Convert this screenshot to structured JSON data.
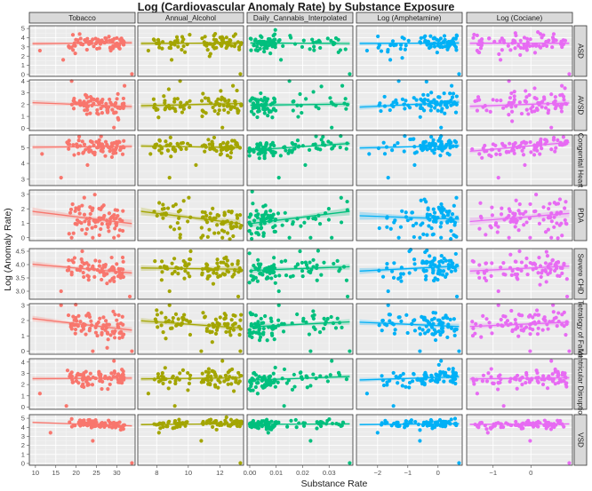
{
  "chart_data": {
    "type": "scatter",
    "title": "Log (Cardiovascular Anomaly Rate) by Substance Exposure",
    "xlabel": "Substance Rate",
    "ylabel": "Log (Anomaly Rate)",
    "grid": true,
    "legend": "none",
    "columns": [
      {
        "name": "Tobacco",
        "color": "#F8766D",
        "xlim": [
          8.5,
          34.5
        ],
        "ticks": [
          10,
          15,
          20,
          25,
          30
        ],
        "tick_labels": [
          "10",
          "15",
          "20",
          "25",
          "30"
        ]
      },
      {
        "name": "Annual_Alcohol",
        "color": "#A3A500",
        "xlim": [
          6.8,
          13.5
        ],
        "ticks": [
          8,
          10,
          12
        ],
        "tick_labels": [
          "8",
          "10",
          "12"
        ]
      },
      {
        "name": "Daily_Cannabis_Interpolated",
        "color": "#00BF7D",
        "xlim": [
          -0.001,
          0.039
        ],
        "ticks": [
          0,
          0.01,
          0.02,
          0.03
        ],
        "tick_labels": [
          "0.00",
          "0.01",
          "0.02",
          "0.03"
        ]
      },
      {
        "name": "Log (Amphetamine)",
        "color": "#00B0F6",
        "xlim": [
          -2.7,
          0.8
        ],
        "ticks": [
          -2,
          -1,
          0
        ],
        "tick_labels": [
          "−2",
          "−1",
          "0"
        ]
      },
      {
        "name": "Log (Cociane)",
        "color": "#E76BF3",
        "xlim": [
          -1.7,
          1.1
        ],
        "ticks": [
          -1,
          0
        ],
        "tick_labels": [
          "−1",
          "0"
        ]
      }
    ],
    "rows": [
      {
        "name": "ASD",
        "ylim": [
          -0.2,
          5.3
        ],
        "ticks": [
          0,
          1,
          2,
          3,
          4,
          5
        ],
        "center": 3.4,
        "spread": 0.55,
        "slopes": [
          0.1,
          0.05,
          -0.05,
          0.05,
          0.0
        ],
        "points": [
          [
            0.97,
            0.05
          ],
          [
            0.32,
            1.6
          ],
          [
            0.1,
            2.6
          ]
        ]
      },
      {
        "name": "AVSD",
        "ylim": [
          -0.2,
          4.1
        ],
        "ticks": [
          0,
          1,
          2,
          3,
          4
        ],
        "center": 2.0,
        "spread": 0.6,
        "slopes": [
          -0.35,
          0.2,
          0.1,
          0.45,
          0.3
        ],
        "points": [
          [
            0.4,
            4.0
          ],
          [
            0.9,
            3.6
          ],
          [
            0.8,
            0.05
          ]
        ]
      },
      {
        "name": "Congenital Heart",
        "ylim": [
          2.6,
          5.8
        ],
        "ticks": [
          3,
          4,
          5
        ],
        "center": 5.05,
        "spread": 0.35,
        "slopes": [
          0.05,
          -0.1,
          0.45,
          0.15,
          0.6
        ],
        "points": [
          [
            0.3,
            3.1
          ],
          [
            0.55,
            3.9
          ],
          [
            0.12,
            4.6
          ]
        ]
      },
      {
        "name": "PDA",
        "ylim": [
          -0.2,
          3.3
        ],
        "ticks": [
          0,
          1,
          2,
          3
        ],
        "center": 1.4,
        "spread": 0.75,
        "slopes": [
          -0.9,
          -0.9,
          0.9,
          -0.25,
          0.6
        ],
        "points": [
          [
            0.4,
            0.0
          ],
          [
            0.6,
            0.0
          ],
          [
            0.8,
            0.0
          ]
        ]
      },
      {
        "name": "Severe CHD",
        "ylim": [
          2.7,
          4.6
        ],
        "ticks": [
          3.0,
          3.5,
          4.0,
          4.5
        ],
        "tick_labels": [
          "3.0",
          "3.5",
          "4.0",
          "4.5"
        ],
        "center": 3.85,
        "spread": 0.3,
        "slopes": [
          -0.35,
          -0.05,
          0.15,
          0.2,
          0.2
        ],
        "points": [
          [
            0.95,
            2.8
          ],
          [
            0.5,
            4.5
          ],
          [
            0.3,
            3.0
          ]
        ]
      },
      {
        "name": "Tetralogy of Fallot",
        "ylim": [
          -0.2,
          3.1
        ],
        "ticks": [
          0,
          1,
          2,
          3
        ],
        "center": 1.75,
        "spread": 0.5,
        "slopes": [
          -0.8,
          -0.5,
          0.35,
          -0.3,
          0.3
        ],
        "points": [
          [
            0.97,
            0.0
          ],
          [
            0.6,
            0.0
          ],
          [
            0.3,
            3.0
          ]
        ]
      },
      {
        "name": "Ventricular Disruption",
        "ylim": [
          -0.2,
          4.3
        ],
        "ticks": [
          0,
          1,
          2,
          3,
          4
        ],
        "center": 2.55,
        "spread": 0.5,
        "slopes": [
          0.05,
          0.1,
          0.35,
          0.3,
          0.1
        ],
        "points": [
          [
            0.35,
            0.1
          ],
          [
            0.8,
            4.1
          ],
          [
            0.1,
            1.2
          ]
        ]
      },
      {
        "name": "VSD",
        "ylim": [
          -0.2,
          5.4
        ],
        "ticks": [
          0,
          1,
          2,
          3,
          4,
          5
        ],
        "center": 4.35,
        "spread": 0.3,
        "slopes": [
          -0.4,
          0.1,
          0.05,
          0.1,
          0.05
        ],
        "points": [
          [
            0.97,
            0.05
          ],
          [
            0.6,
            2.5
          ],
          [
            0.2,
            3.4
          ]
        ]
      }
    ],
    "points_per_panel": 80
  }
}
